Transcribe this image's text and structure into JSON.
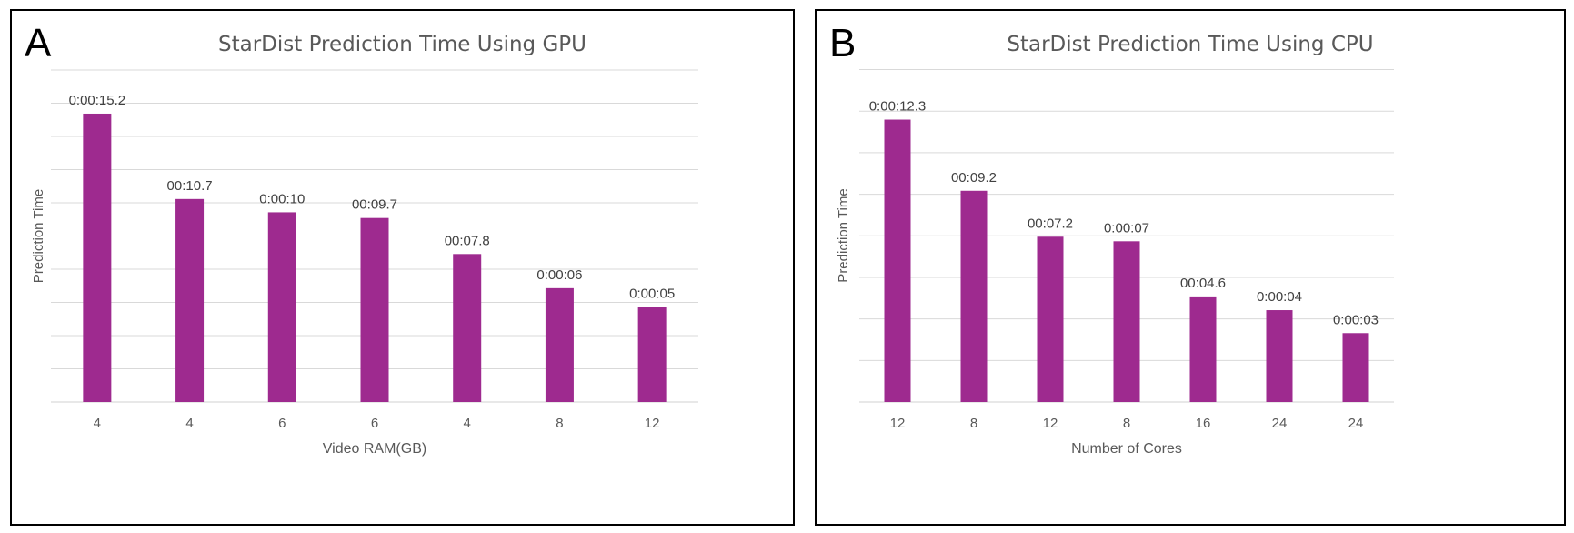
{
  "chart_data": [
    {
      "panel_label": "A",
      "type": "bar",
      "title": "StarDist Prediction Time Using GPU",
      "xlabel": "Video RAM(GB)",
      "ylabel": "Prediction Time",
      "categories": [
        "4",
        "4",
        "6",
        "6",
        "4",
        "8",
        "12"
      ],
      "values": [
        15.2,
        10.7,
        10,
        9.7,
        7.8,
        6,
        5
      ],
      "data_labels": [
        "0:00:15.2",
        "00:10.7",
        "0:00:10",
        "00:09.7",
        "00:07.8",
        "0:00:06",
        "0:00:05"
      ],
      "ylim": [
        0,
        17.5
      ],
      "ytick_step": 1.75,
      "grid": true,
      "bar_color": "#9e2a8f"
    },
    {
      "panel_label": "B",
      "type": "bar",
      "title": "StarDist Prediction Time Using CPU",
      "xlabel": "Number of Cores",
      "ylabel": "Prediction Time",
      "categories": [
        "12",
        "8",
        "12",
        "8",
        "16",
        "24",
        "24"
      ],
      "values": [
        12.3,
        9.2,
        7.2,
        7,
        4.6,
        4,
        3
      ],
      "data_labels": [
        "0:00:12.3",
        "00:09.2",
        "00:07.2",
        "0:00:07",
        "00:04.6",
        "0:00:04",
        "0:00:03"
      ],
      "ylim": [
        0,
        14.5
      ],
      "ytick_step": 1.81,
      "grid": true,
      "bar_color": "#9e2a8f"
    }
  ]
}
